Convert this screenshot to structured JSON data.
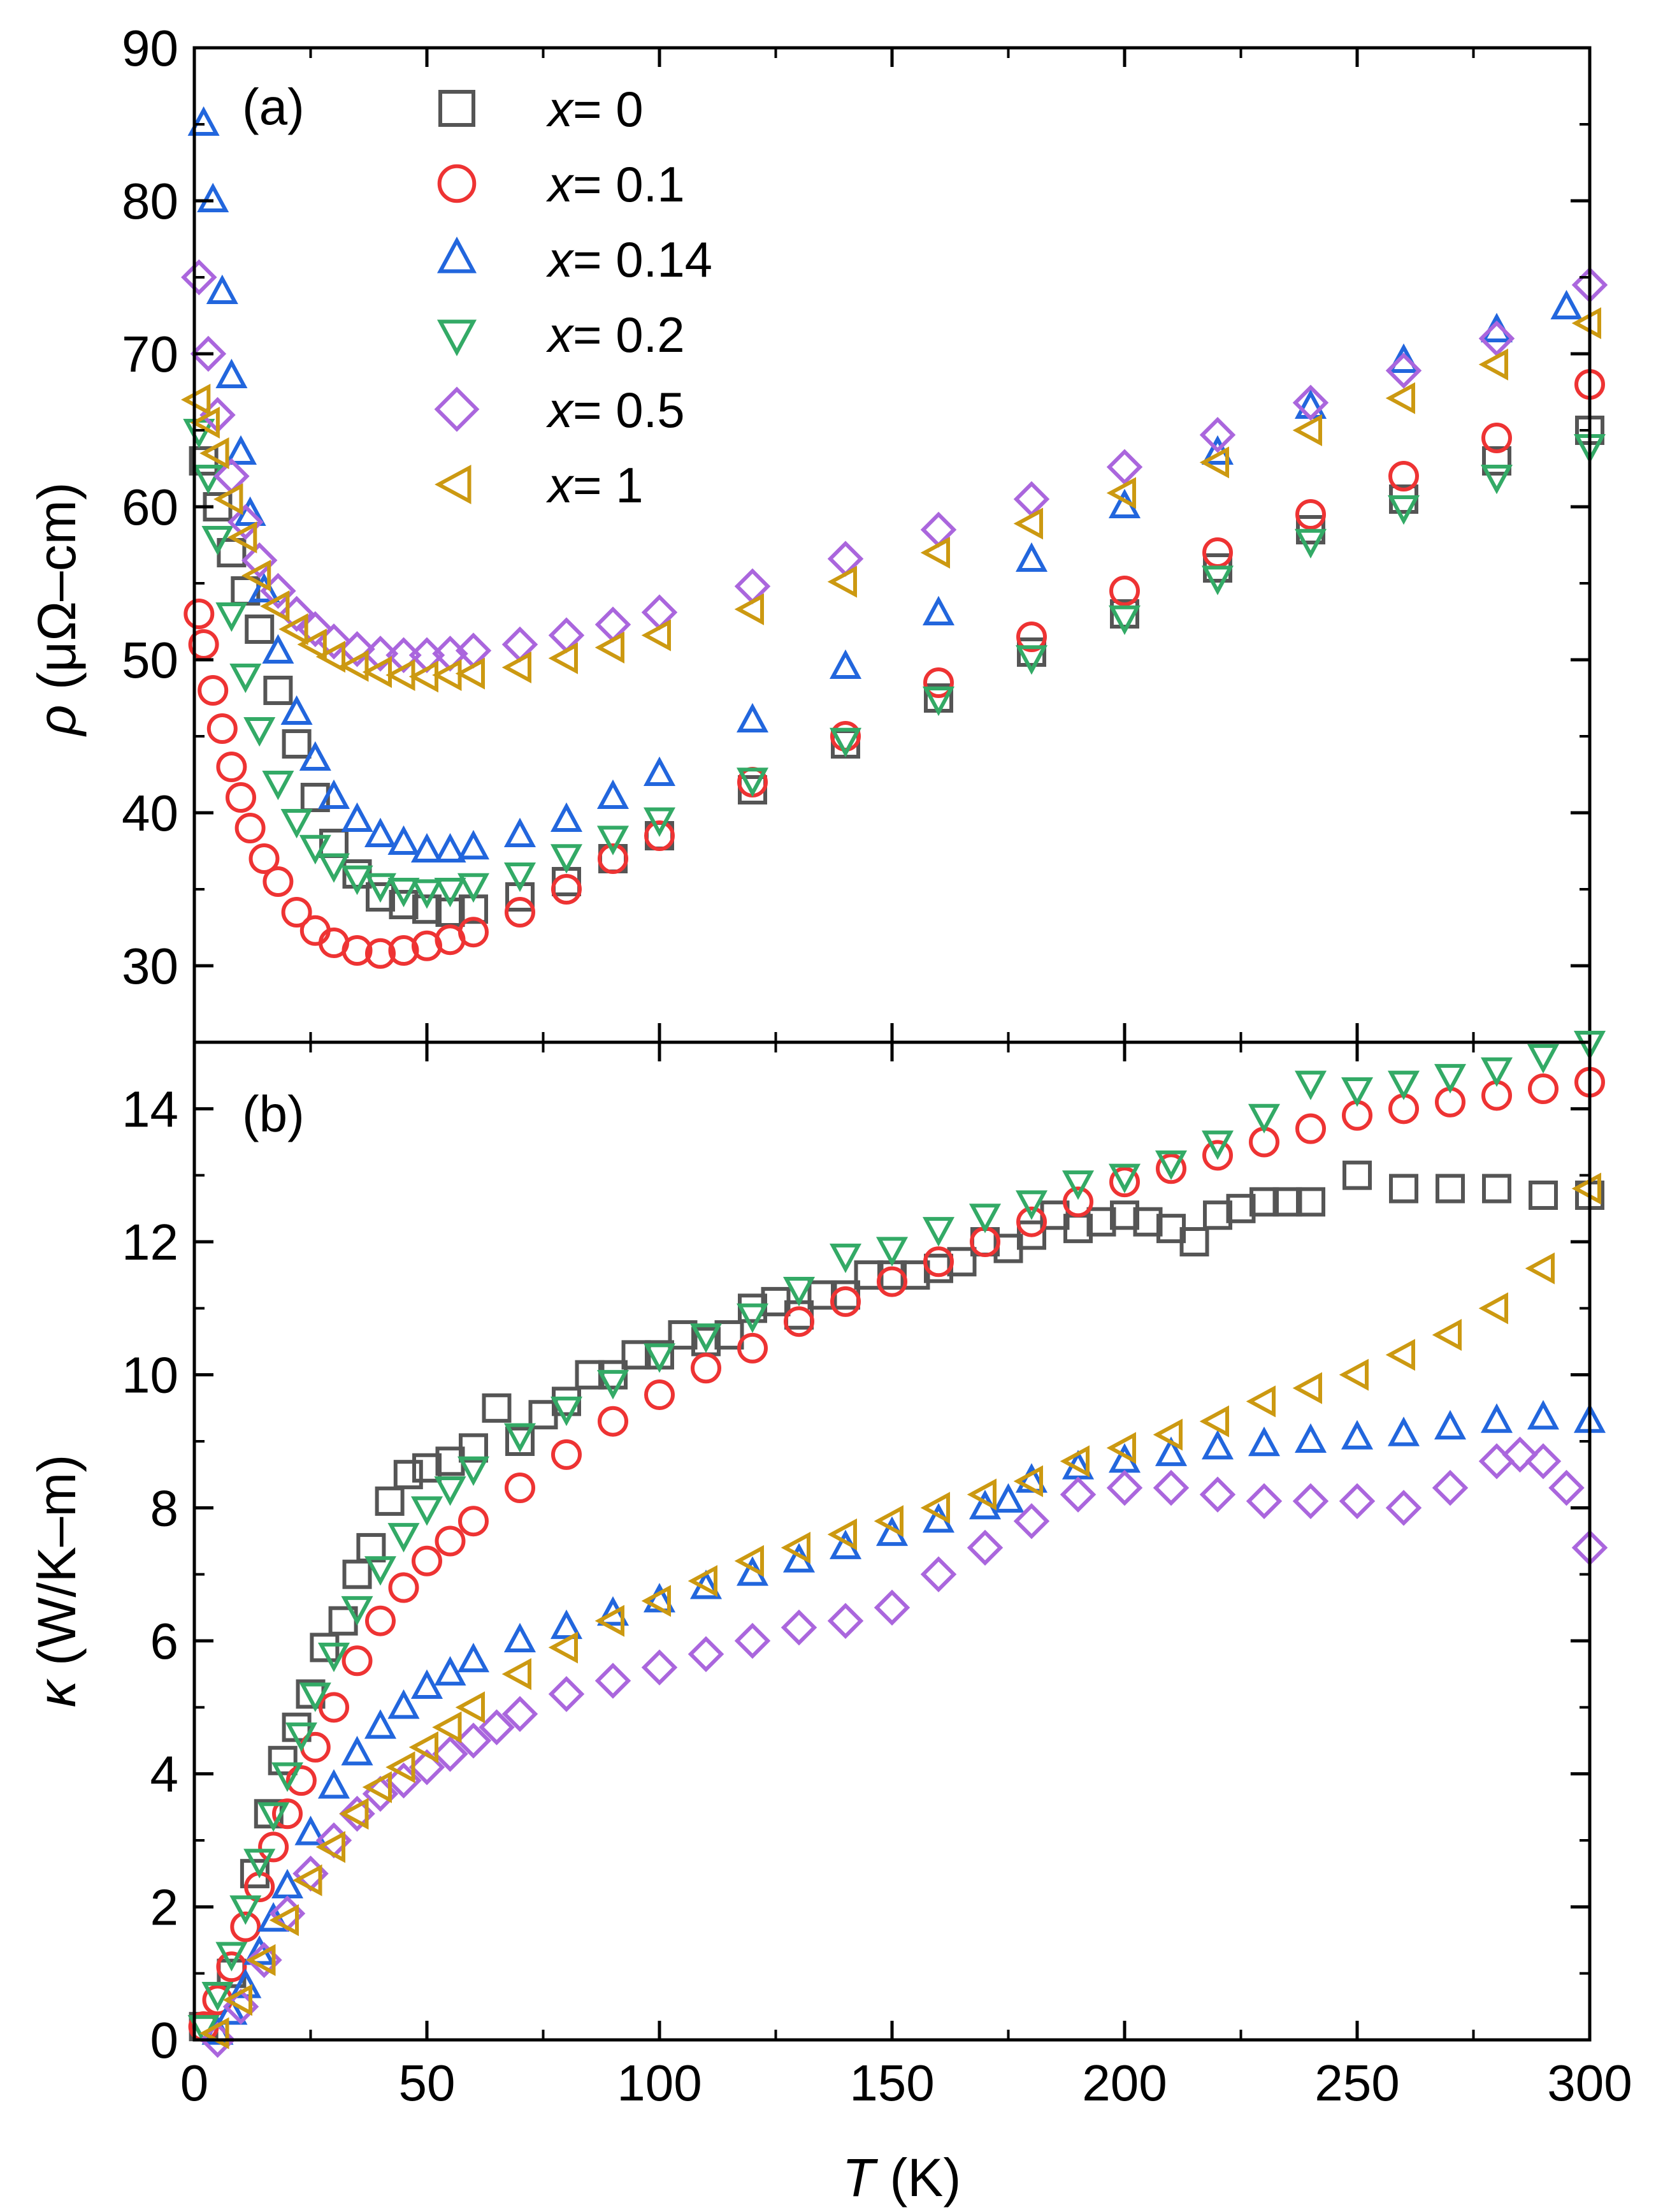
{
  "chart_data": [
    {
      "panel": "(a)",
      "type": "scatter",
      "title": "",
      "xlabel": "T (K)",
      "xlabel_var": "T",
      "xlabel_unit": " (K)",
      "ylabel": "ρ (μΩ–cm)",
      "ylabel_var": "ρ",
      "ylabel_unit": " (μΩ–cm)",
      "xlim": [
        0,
        300
      ],
      "ylim": [
        25,
        90
      ],
      "x_ticks": [
        0,
        50,
        100,
        150,
        200,
        250,
        300
      ],
      "y_ticks": [
        30,
        40,
        50,
        60,
        70,
        80,
        90
      ],
      "grid": false,
      "legend_position": "top-left",
      "series": [
        {
          "name": "x= 0",
          "var": "x",
          "value_label": "= 0",
          "marker": "square",
          "color": "#555555",
          "x": [
            2,
            5,
            8,
            11,
            14,
            18,
            22,
            26,
            30,
            35,
            40,
            45,
            50,
            55,
            60,
            70,
            80,
            90,
            100,
            120,
            140,
            160,
            180,
            200,
            220,
            240,
            260,
            280,
            300
          ],
          "y": [
            63,
            60,
            57,
            54.5,
            52,
            48,
            44.5,
            41,
            38,
            36,
            34.5,
            34,
            33.7,
            33.5,
            33.7,
            34.5,
            35.5,
            37,
            38.5,
            41.5,
            44.5,
            47.5,
            50.5,
            53,
            56,
            58.5,
            60.5,
            63,
            65
          ]
        },
        {
          "name": "x= 0.1",
          "var": "x",
          "value_label": "= 0.1",
          "marker": "circle",
          "color": "#ee3333",
          "x": [
            1,
            2,
            4,
            6,
            8,
            10,
            12,
            15,
            18,
            22,
            26,
            30,
            35,
            40,
            45,
            50,
            55,
            60,
            70,
            80,
            90,
            100,
            120,
            140,
            160,
            180,
            200,
            220,
            240,
            260,
            280,
            300
          ],
          "y": [
            53,
            51,
            48,
            45.5,
            43,
            41,
            39,
            37,
            35.5,
            33.5,
            32.3,
            31.5,
            31,
            30.8,
            31,
            31.3,
            31.7,
            32.2,
            33.5,
            35,
            37,
            38.5,
            42,
            45,
            48.5,
            51.5,
            54.5,
            57,
            59.5,
            62,
            64.5,
            68
          ]
        },
        {
          "name": "x= 0.14",
          "var": "x",
          "value_label": "= 0.14",
          "marker": "triangle-up",
          "color": "#2266dd",
          "x": [
            2,
            4,
            6,
            8,
            10,
            12,
            15,
            18,
            22,
            26,
            30,
            35,
            40,
            45,
            50,
            55,
            60,
            70,
            80,
            90,
            100,
            120,
            140,
            160,
            180,
            200,
            220,
            240,
            260,
            280,
            295
          ],
          "y": [
            85,
            80,
            74,
            68.5,
            63.5,
            59.5,
            54.5,
            50.5,
            46.5,
            43.5,
            41,
            39.5,
            38.5,
            38,
            37.5,
            37.5,
            37.7,
            38.5,
            39.5,
            41,
            42.5,
            46,
            49.5,
            53,
            56.5,
            60,
            63.5,
            66.5,
            69.5,
            71.5,
            73
          ]
        },
        {
          "name": "x= 0.2",
          "var": "x",
          "value_label": "= 0.2",
          "marker": "triangle-down",
          "color": "#33aa66",
          "x": [
            1,
            3,
            5,
            8,
            11,
            14,
            18,
            22,
            26,
            30,
            35,
            40,
            45,
            50,
            55,
            60,
            70,
            80,
            90,
            100,
            120,
            140,
            160,
            180,
            200,
            220,
            240,
            260,
            280,
            300
          ],
          "y": [
            65,
            62,
            58,
            53,
            49,
            45.5,
            42,
            39.5,
            37.8,
            36.6,
            35.8,
            35.3,
            35,
            34.9,
            35,
            35.3,
            36,
            37.2,
            38.4,
            39.6,
            42.2,
            44.8,
            47.5,
            50.2,
            52.8,
            55.4,
            57.8,
            60,
            62,
            64
          ]
        },
        {
          "name": "x= 0.5",
          "var": "x",
          "value_label": "= 0.5",
          "marker": "diamond",
          "color": "#aa66dd",
          "x": [
            1,
            3,
            5,
            8,
            11,
            14,
            18,
            22,
            26,
            30,
            35,
            40,
            45,
            50,
            55,
            60,
            70,
            80,
            90,
            100,
            120,
            140,
            160,
            180,
            200,
            220,
            240,
            260,
            280,
            300
          ],
          "y": [
            75,
            70,
            66,
            62,
            59,
            56.5,
            54.5,
            53,
            52,
            51.2,
            50.7,
            50.4,
            50.3,
            50.3,
            50.4,
            50.6,
            51,
            51.6,
            52.3,
            53.1,
            54.8,
            56.6,
            58.5,
            60.5,
            62.6,
            64.7,
            66.8,
            68.9,
            71,
            74.5
          ]
        },
        {
          "name": "x= 1",
          "var": "x",
          "value_label": "= 1",
          "marker": "triangle-left",
          "color": "#cc9911",
          "x": [
            1,
            3,
            5,
            8,
            11,
            14,
            18,
            22,
            26,
            30,
            35,
            40,
            45,
            50,
            55,
            60,
            70,
            80,
            90,
            100,
            120,
            140,
            160,
            180,
            200,
            220,
            240,
            260,
            280,
            300
          ],
          "y": [
            67,
            65.5,
            63.5,
            60.5,
            58,
            55.5,
            53.5,
            52,
            51,
            50.2,
            49.6,
            49.2,
            49,
            48.9,
            49,
            49.1,
            49.5,
            50.1,
            50.8,
            51.6,
            53.3,
            55.1,
            57,
            58.9,
            60.9,
            62.9,
            65,
            67.1,
            69.3,
            72
          ]
        }
      ]
    },
    {
      "panel": "(b)",
      "type": "scatter",
      "title": "",
      "xlabel": "T (K)",
      "xlabel_var": "T",
      "xlabel_unit": " (K)",
      "ylabel": "κ (W/K–m)",
      "ylabel_var": "κ",
      "ylabel_unit": " (W/K–m)",
      "xlim": [
        0,
        300
      ],
      "ylim": [
        0,
        15
      ],
      "x_ticks": [
        0,
        50,
        100,
        150,
        200,
        250,
        300
      ],
      "y_ticks": [
        0,
        2,
        4,
        6,
        8,
        10,
        12,
        14
      ],
      "grid": false,
      "series": [
        {
          "name": "x= 0",
          "marker": "square",
          "color": "#555555",
          "x": [
            2,
            8,
            13,
            16,
            19,
            22,
            25,
            28,
            32,
            35,
            38,
            42,
            46,
            50,
            55,
            60,
            65,
            70,
            75,
            80,
            85,
            90,
            95,
            100,
            105,
            110,
            115,
            120,
            125,
            130,
            135,
            140,
            145,
            150,
            155,
            160,
            165,
            170,
            175,
            180,
            185,
            190,
            195,
            200,
            205,
            210,
            215,
            220,
            225,
            230,
            235,
            240,
            250,
            260,
            270,
            280,
            290,
            300
          ],
          "y": [
            0.2,
            1.0,
            2.5,
            3.4,
            4.2,
            4.7,
            5.2,
            5.9,
            6.3,
            7.0,
            7.4,
            8.1,
            8.5,
            8.6,
            8.7,
            8.9,
            9.5,
            9.0,
            9.4,
            9.6,
            10.0,
            10.0,
            10.3,
            10.3,
            10.6,
            10.5,
            10.6,
            11.0,
            11.1,
            10.9,
            11.2,
            11.2,
            11.5,
            11.5,
            11.5,
            11.6,
            11.7,
            12.0,
            11.9,
            12.1,
            12.4,
            12.2,
            12.3,
            12.4,
            12.3,
            12.2,
            12.0,
            12.4,
            12.5,
            12.6,
            12.6,
            12.6,
            13.0,
            12.8,
            12.8,
            12.8,
            12.7,
            12.7
          ]
        },
        {
          "name": "x= 0.1",
          "marker": "circle",
          "color": "#ee3333",
          "x": [
            2,
            5,
            8,
            11,
            14,
            17,
            20,
            23,
            26,
            30,
            35,
            40,
            45,
            50,
            55,
            60,
            70,
            80,
            90,
            100,
            110,
            120,
            130,
            140,
            150,
            160,
            170,
            180,
            190,
            200,
            210,
            220,
            230,
            240,
            250,
            260,
            270,
            280,
            290,
            300
          ],
          "y": [
            0.2,
            0.6,
            1.1,
            1.7,
            2.3,
            2.9,
            3.4,
            3.9,
            4.4,
            5.0,
            5.7,
            6.3,
            6.8,
            7.2,
            7.5,
            7.8,
            8.3,
            8.8,
            9.3,
            9.7,
            10.1,
            10.4,
            10.8,
            11.1,
            11.4,
            11.7,
            12.0,
            12.3,
            12.6,
            12.9,
            13.1,
            13.3,
            13.5,
            13.7,
            13.9,
            14.0,
            14.1,
            14.2,
            14.3,
            14.4
          ]
        },
        {
          "name": "x= 0.14",
          "marker": "triangle-up",
          "color": "#2266dd",
          "x": [
            5,
            8,
            11,
            14,
            17,
            20,
            25,
            30,
            35,
            40,
            45,
            50,
            55,
            60,
            70,
            80,
            90,
            100,
            110,
            120,
            130,
            140,
            150,
            160,
            170,
            175,
            180,
            190,
            200,
            210,
            220,
            230,
            240,
            250,
            260,
            270,
            280,
            290,
            300
          ],
          "y": [
            0.1,
            0.4,
            0.8,
            1.3,
            1.8,
            2.3,
            3.1,
            3.8,
            4.3,
            4.7,
            5.0,
            5.3,
            5.5,
            5.7,
            6.0,
            6.2,
            6.4,
            6.6,
            6.8,
            7.0,
            7.2,
            7.4,
            7.6,
            7.8,
            8.0,
            8.1,
            8.4,
            8.6,
            8.7,
            8.8,
            8.9,
            8.95,
            9.0,
            9.05,
            9.1,
            9.2,
            9.3,
            9.35,
            9.3
          ]
        },
        {
          "name": "x= 0.2",
          "marker": "triangle-down",
          "color": "#33aa66",
          "x": [
            2,
            5,
            8,
            11,
            14,
            17,
            20,
            23,
            26,
            30,
            35,
            40,
            45,
            50,
            55,
            60,
            70,
            80,
            90,
            100,
            110,
            120,
            130,
            140,
            150,
            160,
            170,
            180,
            190,
            200,
            210,
            220,
            230,
            240,
            250,
            260,
            270,
            280,
            290,
            300
          ],
          "y": [
            0.2,
            0.7,
            1.3,
            2.0,
            2.7,
            3.4,
            4.0,
            4.6,
            5.2,
            5.8,
            6.5,
            7.1,
            7.6,
            8.0,
            8.3,
            8.6,
            9.1,
            9.5,
            9.9,
            10.3,
            10.6,
            10.9,
            11.3,
            11.8,
            11.9,
            12.2,
            12.4,
            12.6,
            12.9,
            13.0,
            13.2,
            13.5,
            13.9,
            14.4,
            14.3,
            14.4,
            14.5,
            14.6,
            14.8,
            15.0
          ]
        },
        {
          "name": "x= 0.5",
          "marker": "diamond",
          "color": "#aa66dd",
          "x": [
            5,
            10,
            15,
            20,
            25,
            30,
            35,
            40,
            45,
            50,
            55,
            60,
            65,
            70,
            80,
            90,
            100,
            110,
            120,
            130,
            140,
            150,
            160,
            170,
            180,
            190,
            200,
            210,
            220,
            230,
            240,
            250,
            260,
            270,
            280,
            285,
            290,
            295,
            300
          ],
          "y": [
            0.0,
            0.5,
            1.2,
            1.9,
            2.5,
            3.0,
            3.4,
            3.7,
            3.9,
            4.1,
            4.3,
            4.5,
            4.7,
            4.9,
            5.2,
            5.4,
            5.6,
            5.8,
            6.0,
            6.2,
            6.3,
            6.5,
            7.0,
            7.4,
            7.8,
            8.2,
            8.3,
            8.3,
            8.2,
            8.1,
            8.1,
            8.1,
            8.0,
            8.3,
            8.7,
            8.8,
            8.7,
            8.3,
            7.4
          ]
        },
        {
          "name": "x= 1",
          "marker": "triangle-left",
          "color": "#cc9911",
          "x": [
            5,
            10,
            15,
            20,
            25,
            30,
            35,
            40,
            45,
            50,
            55,
            60,
            70,
            80,
            90,
            100,
            110,
            120,
            130,
            140,
            150,
            160,
            170,
            180,
            190,
            200,
            210,
            220,
            230,
            240,
            250,
            260,
            270,
            280,
            290,
            300
          ],
          "y": [
            0.1,
            0.6,
            1.2,
            1.8,
            2.4,
            2.9,
            3.4,
            3.8,
            4.1,
            4.4,
            4.7,
            5.0,
            5.5,
            5.9,
            6.3,
            6.6,
            6.9,
            7.2,
            7.4,
            7.6,
            7.8,
            8.0,
            8.2,
            8.4,
            8.7,
            8.9,
            9.1,
            9.3,
            9.6,
            9.8,
            10.0,
            10.3,
            10.6,
            11.0,
            11.6,
            12.8
          ]
        }
      ]
    }
  ]
}
